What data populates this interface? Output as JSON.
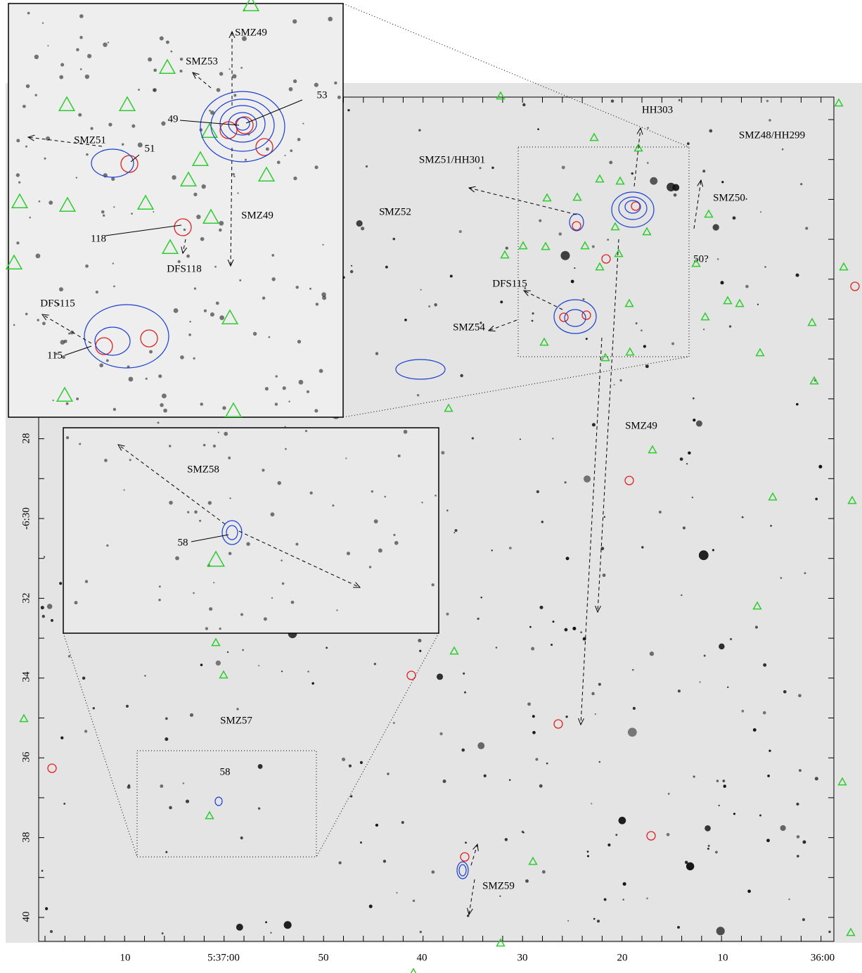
{
  "main": {
    "x_ticks": [
      "10",
      "5:37:00",
      "50",
      "40",
      "30",
      "20",
      "10",
      "36:00"
    ],
    "y_ticks": [
      "28",
      "-6:30",
      "32",
      "34",
      "36",
      "38",
      "40"
    ],
    "labels": [
      "HH303",
      "SMZ48/HH299",
      "SMZ51/HH301",
      "SMZ50",
      "SMZ52",
      "50?",
      "DFS115",
      "SMZ54",
      "SMZ49",
      "SMZ57",
      "58",
      "SMZ59"
    ]
  },
  "inset_top": {
    "labels": [
      "SMZ49",
      "SMZ53",
      "53",
      "49",
      "SMZ51",
      "51",
      "SMZ49",
      "118",
      "DFS118",
      "DFS115",
      "115"
    ]
  },
  "inset_bottom": {
    "labels": [
      "SMZ58",
      "58"
    ]
  }
}
